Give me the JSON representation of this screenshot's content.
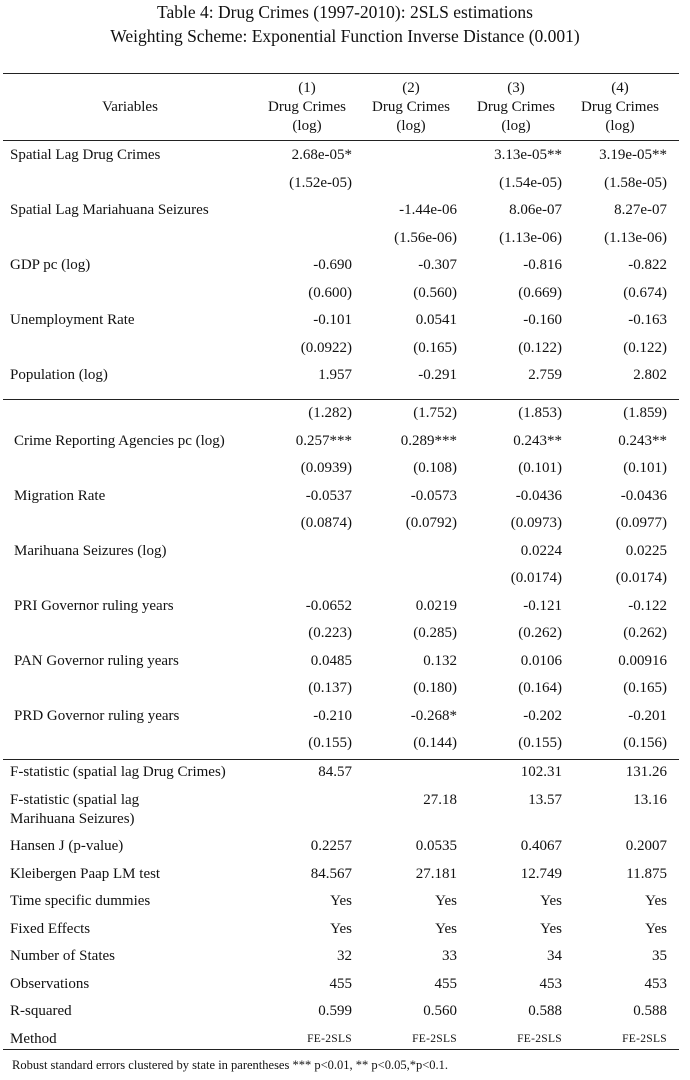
{
  "header": {
    "title": "Table 4: Drug Crimes (1997-2010): 2SLS estimations",
    "subtitle": "Weighting Scheme: Exponential Function Inverse Distance (0.001)"
  },
  "table": {
    "stub_header": "Variables",
    "columns": [
      {
        "number": "(1)",
        "name": "Drug Crimes",
        "unit": "(log)"
      },
      {
        "number": "(2)",
        "name": "Drug Crimes",
        "unit": "(log)"
      },
      {
        "number": "(3)",
        "name": "Drug Crimes",
        "unit": "(log)"
      },
      {
        "number": "(4)",
        "name": "Drug Crimes",
        "unit": "(log)"
      }
    ],
    "sections": [
      {
        "rows": [
          {
            "label": "Spatial Lag Drug Crimes",
            "cells": [
              "2.68e-05*",
              null,
              "3.13e-05**",
              "3.19e-05**"
            ]
          },
          {
            "cells": [
              "(1.52e-05)",
              null,
              "(1.54e-05)",
              "(1.58e-05)"
            ]
          },
          {
            "label": "Spatial Lag Mariahuana Seizures",
            "cells": [
              null,
              "-1.44e-06",
              "8.06e-07",
              "8.27e-07"
            ]
          },
          {
            "cells": [
              null,
              "(1.56e-06)",
              "(1.13e-06)",
              "(1.13e-06)"
            ]
          },
          {
            "label": "GDP pc (log)",
            "cells": [
              "-0.690",
              "-0.307",
              "-0.816",
              "-0.822"
            ]
          },
          {
            "cells": [
              "(0.600)",
              "(0.560)",
              "(0.669)",
              "(0.674)"
            ]
          },
          {
            "label": "Unemployment Rate",
            "cells": [
              "-0.101",
              "0.0541",
              "-0.160",
              "-0.163"
            ]
          },
          {
            "cells": [
              "(0.0922)",
              "(0.165)",
              "(0.122)",
              "(0.122)"
            ]
          },
          {
            "label": "Population (log)",
            "cells": [
              "1.957",
              "-0.291",
              "2.759",
              "2.802"
            ]
          }
        ]
      },
      {
        "rows": [
          {
            "cells": [
              "(1.282)",
              "(1.752)",
              "(1.853)",
              "(1.859)"
            ]
          },
          {
            "label": "Crime Reporting Agencies pc (log)",
            "cells": [
              "0.257***",
              "0.289***",
              "0.243**",
              "0.243**"
            ]
          },
          {
            "cells": [
              "(0.0939)",
              "(0.108)",
              "(0.101)",
              "(0.101)"
            ]
          },
          {
            "label": "Migration Rate",
            "cells": [
              "-0.0537",
              "-0.0573",
              "-0.0436",
              "-0.0436"
            ]
          },
          {
            "cells": [
              "(0.0874)",
              "(0.0792)",
              "(0.0973)",
              "(0.0977)"
            ]
          },
          {
            "label": "Marihuana Seizures (log)",
            "cells": [
              null,
              null,
              "0.0224",
              "0.0225"
            ]
          },
          {
            "cells": [
              null,
              null,
              "(0.0174)",
              "(0.0174)"
            ]
          },
          {
            "label": "PRI Governor ruling years",
            "cells": [
              "-0.0652",
              "0.0219",
              "-0.121",
              "-0.122"
            ]
          },
          {
            "cells": [
              "(0.223)",
              "(0.285)",
              "(0.262)",
              "(0.262)"
            ]
          },
          {
            "label": "PAN Governor ruling years",
            "cells": [
              "0.0485",
              "0.132",
              "0.0106",
              "0.00916"
            ]
          },
          {
            "cells": [
              "(0.137)",
              "(0.180)",
              "(0.164)",
              "(0.165)"
            ]
          },
          {
            "label": "PRD Governor ruling years",
            "cells": [
              "-0.210",
              "-0.268*",
              "-0.202",
              "-0.201"
            ]
          },
          {
            "cells": [
              "(0.155)",
              "(0.144)",
              "(0.155)",
              "(0.156)"
            ]
          }
        ]
      },
      {
        "rows": [
          {
            "label": "F-statistic (spatial lag Drug Crimes)",
            "cells": [
              "84.57",
              null,
              "102.31",
              "131.26"
            ]
          },
          {
            "label": [
              "F-statistic (spatial lag",
              "Marihuana Seizures)"
            ],
            "cells": [
              null,
              "27.18",
              "13.57",
              "13.16"
            ]
          },
          {
            "label": "Hansen J (p-value)",
            "cells": [
              "0.2257",
              "0.0535",
              "0.4067",
              "0.2007"
            ]
          },
          {
            "label": "Kleibergen Paap LM test",
            "cells": [
              "84.567",
              "27.181",
              "12.749",
              "11.875"
            ]
          },
          {
            "label": "Time specific dummies",
            "cells": [
              "Yes",
              "Yes",
              "Yes",
              "Yes"
            ]
          },
          {
            "label": "Fixed Effects",
            "cells": [
              "Yes",
              "Yes",
              "Yes",
              "Yes"
            ]
          },
          {
            "label": "Number of States",
            "cells": [
              "32",
              "33",
              "34",
              "35"
            ]
          },
          {
            "label": "Observations",
            "cells": [
              "455",
              "455",
              "453",
              "453"
            ]
          },
          {
            "label": "R-squared",
            "cells": [
              "0.599",
              "0.560",
              "0.588",
              "0.588"
            ]
          },
          {
            "label": "Method",
            "cells": [
              "FE-2SLS",
              "FE-2SLS",
              "FE-2SLS",
              "FE-2SLS"
            ]
          }
        ]
      }
    ]
  },
  "footnote": "Robust standard errors clustered by state in parentheses *** p<0.01, ** p<0.05,*p<0.1."
}
